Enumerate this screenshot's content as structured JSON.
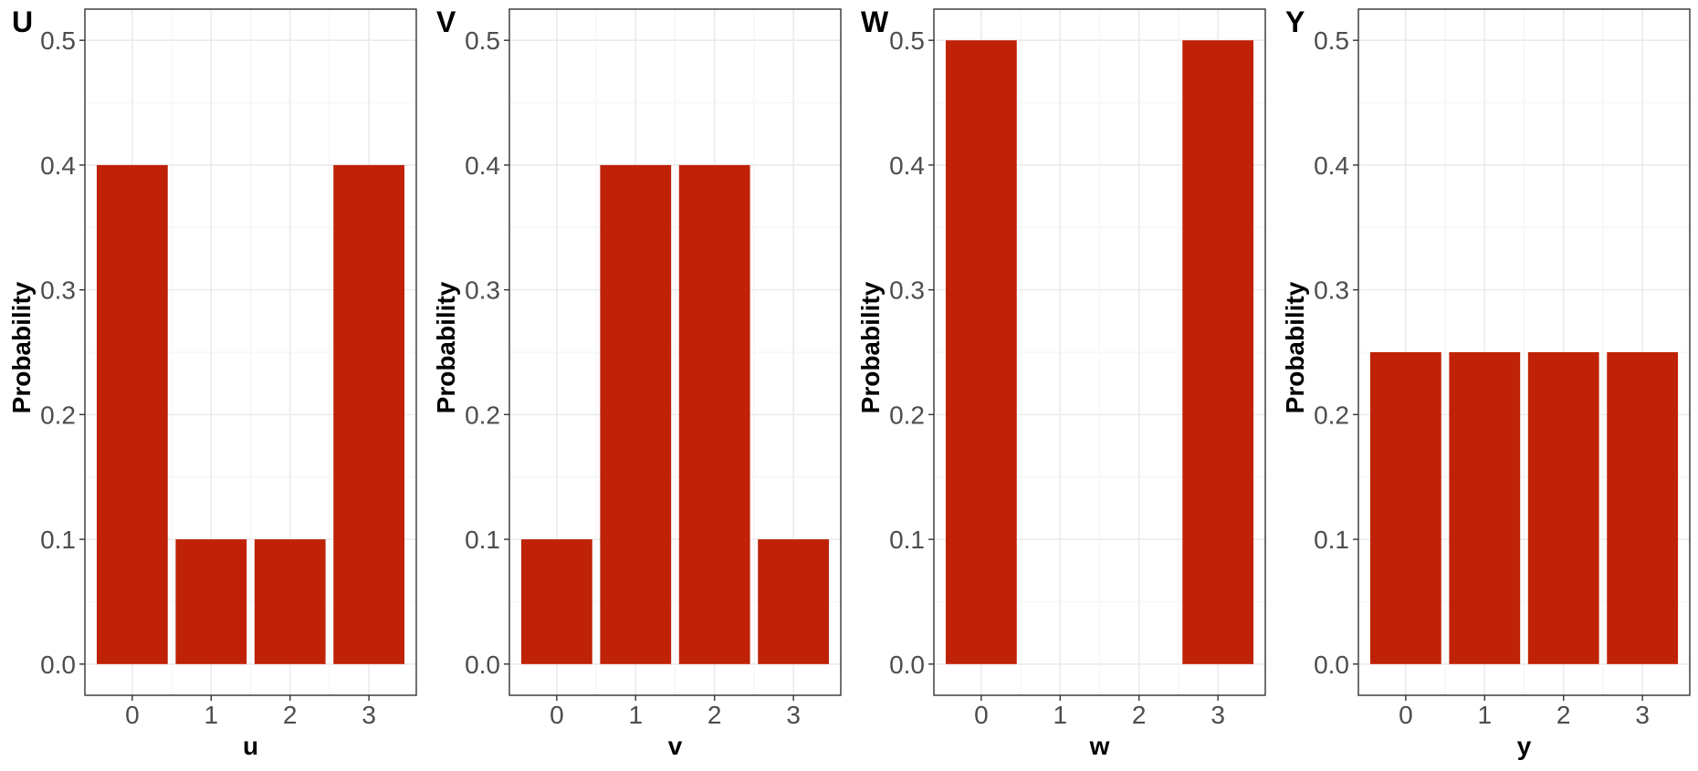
{
  "chart_data": [
    {
      "type": "bar",
      "tag": "U",
      "xlabel": "u",
      "ylabel": "Probability",
      "categories": [
        "0",
        "1",
        "2",
        "3"
      ],
      "values": [
        0.4,
        0.1,
        0.1,
        0.4
      ],
      "ylim": [
        0,
        0.5
      ],
      "yticks": [
        0.0,
        0.1,
        0.2,
        0.3,
        0.4,
        0.5
      ],
      "ytick_labels": [
        "0.0",
        "0.1",
        "0.2",
        "0.3",
        "0.4",
        "0.5"
      ],
      "grid": true
    },
    {
      "type": "bar",
      "tag": "V",
      "xlabel": "v",
      "ylabel": "Probability",
      "categories": [
        "0",
        "1",
        "2",
        "3"
      ],
      "values": [
        0.1,
        0.4,
        0.4,
        0.1
      ],
      "ylim": [
        0,
        0.5
      ],
      "yticks": [
        0.0,
        0.1,
        0.2,
        0.3,
        0.4,
        0.5
      ],
      "ytick_labels": [
        "0.0",
        "0.1",
        "0.2",
        "0.3",
        "0.4",
        "0.5"
      ],
      "grid": true
    },
    {
      "type": "bar",
      "tag": "W",
      "xlabel": "w",
      "ylabel": "Probability",
      "categories": [
        "0",
        "1",
        "2",
        "3"
      ],
      "values": [
        0.5,
        0.0,
        0.0,
        0.5
      ],
      "ylim": [
        0,
        0.5
      ],
      "yticks": [
        0.0,
        0.1,
        0.2,
        0.3,
        0.4,
        0.5
      ],
      "ytick_labels": [
        "0.0",
        "0.1",
        "0.2",
        "0.3",
        "0.4",
        "0.5"
      ],
      "grid": true
    },
    {
      "type": "bar",
      "tag": "Y",
      "xlabel": "y",
      "ylabel": "Probability",
      "categories": [
        "0",
        "1",
        "2",
        "3"
      ],
      "values": [
        0.25,
        0.25,
        0.25,
        0.25
      ],
      "ylim": [
        0,
        0.5
      ],
      "yticks": [
        0.0,
        0.1,
        0.2,
        0.3,
        0.4,
        0.5
      ],
      "ytick_labels": [
        "0.0",
        "0.1",
        "0.2",
        "0.3",
        "0.4",
        "0.5"
      ],
      "grid": true
    }
  ],
  "colors": {
    "bar": "#BF2207",
    "panel_border": "#333333",
    "grid_major": "#EBEBEB",
    "grid_minor": "#F5F5F5",
    "tick_text": "#4D4D4D",
    "tick_mark": "#333333"
  }
}
